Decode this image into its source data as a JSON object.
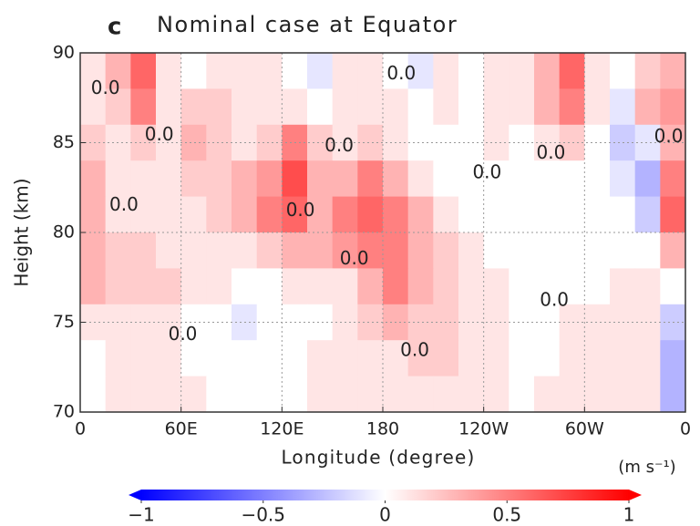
{
  "chart_data": {
    "type": "heatmap",
    "panel_label": "c",
    "title": "Nominal case at Equator",
    "xlabel": "Longitude (degree)",
    "ylabel": "Height (km)",
    "xlim": [
      0,
      360
    ],
    "xticks": [
      0,
      {
        "value": 60,
        "label": "60E"
      },
      {
        "value": 120,
        "label": "120E"
      },
      180,
      {
        "value": 240,
        "label": "120W"
      },
      {
        "value": 300,
        "label": "60W"
      },
      {
        "value": 360,
        "label": "0"
      }
    ],
    "ylim": [
      70,
      90
    ],
    "yticks": [
      70,
      75,
      80,
      85,
      90
    ],
    "grid": true,
    "x": [
      7.5,
      22.5,
      37.5,
      52.5,
      67.5,
      82.5,
      97.5,
      112.5,
      127.5,
      142.5,
      157.5,
      172.5,
      187.5,
      202.5,
      217.5,
      232.5,
      247.5,
      262.5,
      277.5,
      292.5,
      307.5,
      322.5,
      337.5,
      352.5
    ],
    "y": [
      89,
      87,
      85,
      83,
      81,
      79,
      77,
      75,
      73,
      71
    ],
    "z": [
      [
        0.1,
        0.3,
        0.6,
        0.1,
        0.0,
        0.1,
        0.1,
        0.1,
        0.0,
        -0.1,
        0.1,
        0.1,
        0.0,
        -0.1,
        0.1,
        0.0,
        0.1,
        0.1,
        0.3,
        0.6,
        0.1,
        0.0,
        0.2,
        0.3
      ],
      [
        0.1,
        0.2,
        0.5,
        0.1,
        0.2,
        0.2,
        0.1,
        0.1,
        0.1,
        0.0,
        0.1,
        0.1,
        0.1,
        0.0,
        0.1,
        0.0,
        0.1,
        0.1,
        0.3,
        0.5,
        0.1,
        -0.1,
        0.3,
        0.4
      ],
      [
        0.2,
        0.1,
        0.2,
        0.1,
        0.3,
        0.2,
        0.1,
        0.2,
        0.5,
        0.2,
        0.1,
        0.2,
        0.1,
        0.0,
        0.0,
        0.0,
        0.1,
        0.0,
        0.1,
        0.2,
        0.0,
        -0.2,
        -0.1,
        0.3
      ],
      [
        0.3,
        0.1,
        0.1,
        0.1,
        0.2,
        0.2,
        0.3,
        0.4,
        0.7,
        0.3,
        0.3,
        0.5,
        0.3,
        0.1,
        0.0,
        0.0,
        0.0,
        0.0,
        0.0,
        0.0,
        0.0,
        -0.1,
        -0.3,
        0.5
      ],
      [
        0.3,
        0.1,
        0.1,
        0.1,
        0.1,
        0.2,
        0.3,
        0.5,
        0.6,
        0.3,
        0.5,
        0.6,
        0.5,
        0.3,
        0.1,
        0.0,
        0.0,
        0.0,
        0.0,
        0.0,
        0.0,
        0.0,
        -0.2,
        0.6
      ],
      [
        0.3,
        0.2,
        0.2,
        0.1,
        0.1,
        0.1,
        0.1,
        0.2,
        0.3,
        0.3,
        0.4,
        0.5,
        0.5,
        0.3,
        0.2,
        0.1,
        0.0,
        0.0,
        0.0,
        0.0,
        0.0,
        0.0,
        0.0,
        0.3
      ],
      [
        0.3,
        0.2,
        0.2,
        0.2,
        0.1,
        0.1,
        0.0,
        0.0,
        0.1,
        0.1,
        0.1,
        0.3,
        0.5,
        0.3,
        0.2,
        0.1,
        0.1,
        0.0,
        0.0,
        0.0,
        0.0,
        0.1,
        0.1,
        0.0
      ],
      [
        0.1,
        0.1,
        0.1,
        0.1,
        0.0,
        0.0,
        -0.1,
        0.0,
        0.0,
        0.0,
        0.1,
        0.2,
        0.3,
        0.2,
        0.2,
        0.1,
        0.1,
        0.0,
        0.0,
        0.1,
        0.1,
        0.1,
        0.1,
        -0.2
      ],
      [
        0.0,
        0.1,
        0.1,
        0.1,
        0.0,
        0.0,
        0.0,
        0.0,
        0.0,
        0.1,
        0.1,
        0.1,
        0.1,
        0.2,
        0.2,
        0.1,
        0.1,
        0.0,
        0.0,
        0.1,
        0.1,
        0.1,
        0.1,
        -0.3
      ],
      [
        0.0,
        0.1,
        0.1,
        0.1,
        0.1,
        0.0,
        0.0,
        0.0,
        0.0,
        0.1,
        0.1,
        0.1,
        0.1,
        0.1,
        0.1,
        0.1,
        0.1,
        0.0,
        0.1,
        0.1,
        0.1,
        0.1,
        0.1,
        -0.3
      ]
    ],
    "colormap": [
      "#0000ff",
      "#ffffff",
      "#ff0000"
    ],
    "colorbar": {
      "label": "(m s⁻¹)",
      "range": [
        -1,
        1
      ],
      "ticks": [
        {
          "value": -1,
          "label": "−1"
        },
        {
          "value": -0.5,
          "label": "−0.5"
        },
        0,
        0.5,
        1
      ]
    },
    "annotations": [
      {
        "text": "0.0",
        "x": 15,
        "y": 88.0
      },
      {
        "text": "0.0",
        "x": 47,
        "y": 85.4
      },
      {
        "text": "0.0",
        "x": 26,
        "y": 81.5
      },
      {
        "text": "0.0",
        "x": 61,
        "y": 74.3
      },
      {
        "text": "0.0",
        "x": 131,
        "y": 81.2
      },
      {
        "text": "0.0",
        "x": 154,
        "y": 84.8
      },
      {
        "text": "0.0",
        "x": 163,
        "y": 78.5
      },
      {
        "text": "0.0",
        "x": 191,
        "y": 88.8
      },
      {
        "text": "0.0",
        "x": 199,
        "y": 73.4
      },
      {
        "text": "0.0",
        "x": 242,
        "y": 83.3
      },
      {
        "text": "0.0",
        "x": 280,
        "y": 84.4
      },
      {
        "text": "0.0",
        "x": 282,
        "y": 76.2
      },
      {
        "text": "0.0",
        "x": 350,
        "y": 85.3
      }
    ]
  }
}
